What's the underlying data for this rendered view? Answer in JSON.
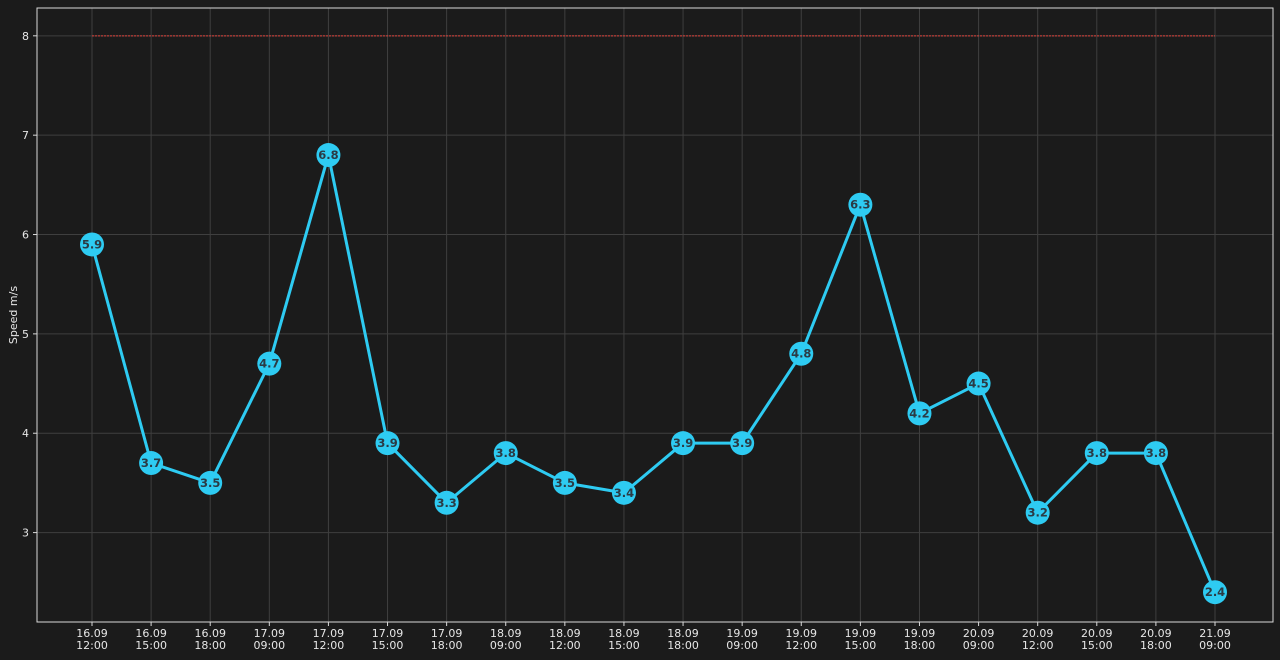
{
  "chart_data": {
    "type": "line",
    "title": "",
    "xlabel": "",
    "ylabel": "Speed m/s",
    "categories": [
      [
        "16.09",
        "12:00"
      ],
      [
        "16.09",
        "15:00"
      ],
      [
        "16.09",
        "18:00"
      ],
      [
        "17.09",
        "09:00"
      ],
      [
        "17.09",
        "12:00"
      ],
      [
        "17.09",
        "15:00"
      ],
      [
        "17.09",
        "18:00"
      ],
      [
        "18.09",
        "09:00"
      ],
      [
        "18.09",
        "12:00"
      ],
      [
        "18.09",
        "15:00"
      ],
      [
        "18.09",
        "18:00"
      ],
      [
        "19.09",
        "09:00"
      ],
      [
        "19.09",
        "12:00"
      ],
      [
        "19.09",
        "15:00"
      ],
      [
        "19.09",
        "18:00"
      ],
      [
        "20.09",
        "09:00"
      ],
      [
        "20.09",
        "12:00"
      ],
      [
        "20.09",
        "15:00"
      ],
      [
        "20.09",
        "18:00"
      ],
      [
        "21.09",
        "09:00"
      ]
    ],
    "series": [
      {
        "values": [
          5.9,
          3.7,
          3.5,
          4.7,
          6.8,
          3.9,
          3.3,
          3.8,
          3.5,
          3.4,
          3.9,
          3.9,
          4.8,
          6.3,
          4.2,
          4.5,
          3.2,
          3.8,
          3.8,
          2.4
        ],
        "color": "#2ecbf2",
        "marker_text_color": "#2b3a44"
      }
    ],
    "threshold": {
      "value": 8,
      "color": "#e0413a",
      "style": "dashed"
    },
    "ylim": [
      2.1,
      8.28
    ],
    "yticks": [
      3,
      4,
      5,
      6,
      7,
      8
    ],
    "grid": true,
    "legend": "none",
    "colors": {
      "background": "#1b1b1b",
      "axes_frame": "#d9d9d9",
      "grid": "#3f3f3f"
    }
  }
}
